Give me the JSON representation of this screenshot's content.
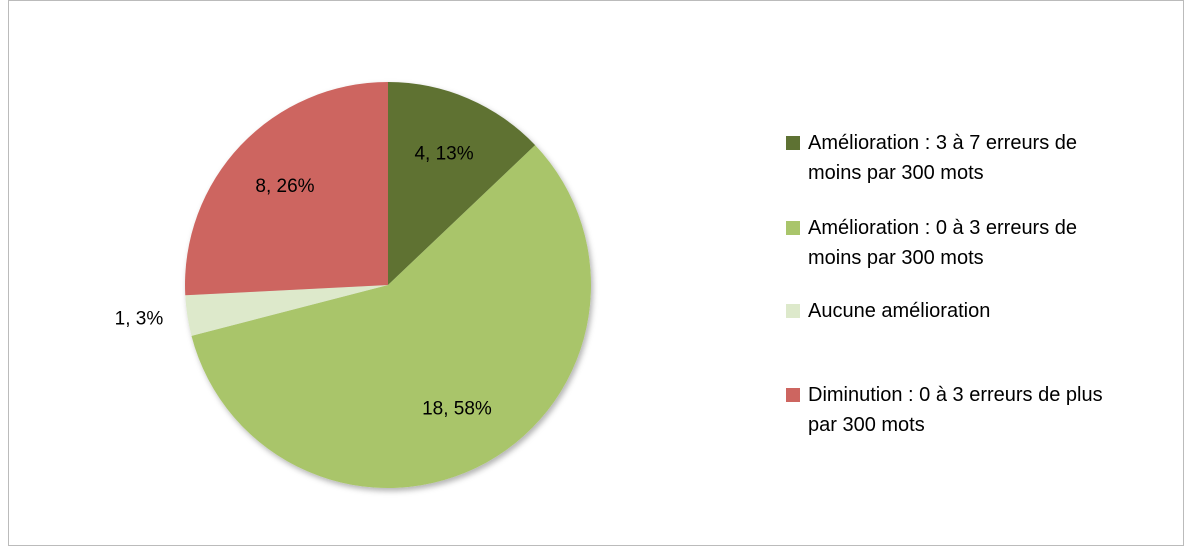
{
  "chart_data": {
    "type": "pie",
    "categories": [
      "Amélioration : 3 à 7 erreurs de moins par 300 mots",
      "Amélioration : 0 à 3 erreurs de moins par 300 mots",
      "Aucune amélioration",
      "Diminution : 0 à 3 erreurs de plus par 300 mots"
    ],
    "values": [
      4,
      18,
      1,
      8
    ],
    "value_labels": [
      "4, 13%",
      "18, 58%",
      "1, 3%",
      "8, 26%"
    ],
    "colors": [
      "#5e7233",
      "#a9c56b",
      "#dde9cb",
      "#cd6560"
    ],
    "legend": "right"
  }
}
